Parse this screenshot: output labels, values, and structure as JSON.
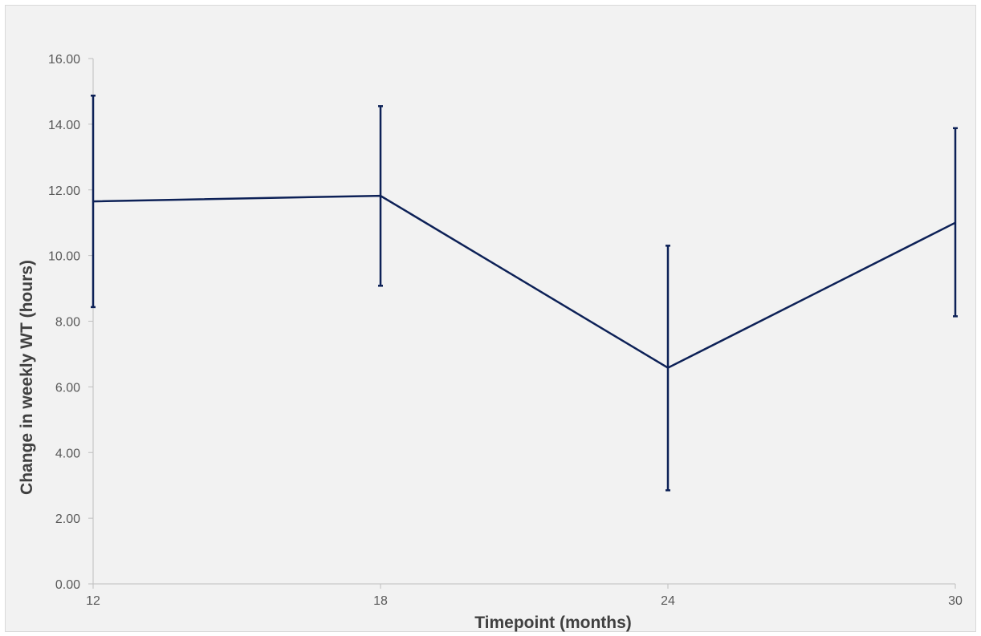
{
  "chart_data": {
    "type": "line",
    "xlabel": "Timepoint (months)",
    "ylabel": "Change in weekly WT (hours)",
    "x": [
      12,
      18,
      24,
      30
    ],
    "x_tick_labels": [
      "12",
      "18",
      "24",
      "30"
    ],
    "ylim": [
      0,
      16
    ],
    "y_ticks": [
      0,
      2,
      4,
      6,
      8,
      10,
      12,
      14,
      16
    ],
    "y_tick_labels": [
      "0.00",
      "2.00",
      "4.00",
      "6.00",
      "8.00",
      "10.00",
      "12.00",
      "14.00",
      "16.00"
    ],
    "series": [
      {
        "values": [
          11.65,
          11.82,
          6.58,
          11.0
        ],
        "error_low": [
          8.43,
          9.08,
          2.85,
          8.15
        ],
        "error_high": [
          14.87,
          14.55,
          10.3,
          13.88
        ],
        "color": "#0d2157"
      }
    ],
    "grid": false,
    "legend": "none"
  }
}
